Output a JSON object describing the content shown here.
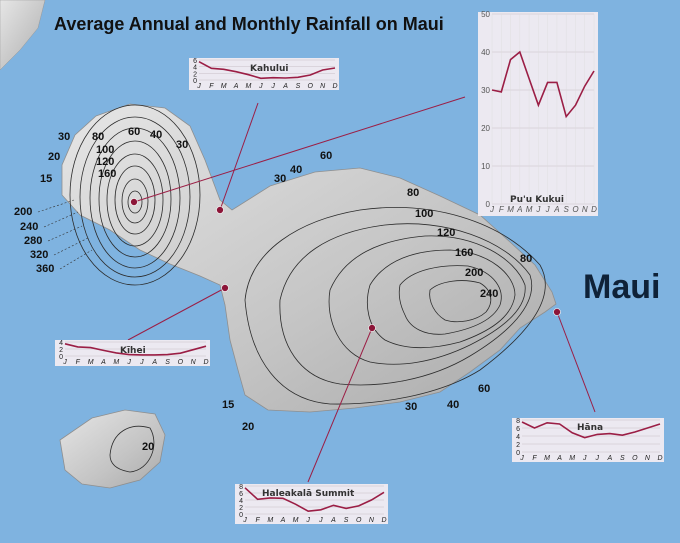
{
  "title": "Average Annual and Monthly Rainfall on Maui",
  "island_label": "Maui",
  "colors": {
    "ocean": "#7fb3e0",
    "land": "#cfcfcf",
    "contour": "#2b2b2b",
    "series": "#9b1e45",
    "chart_bg": "#f5eef2"
  },
  "months": [
    "J",
    "F",
    "M",
    "A",
    "M",
    "J",
    "J",
    "A",
    "S",
    "O",
    "N",
    "D"
  ],
  "contour_labels": {
    "west": [
      "30",
      "20",
      "15",
      "80",
      "100",
      "120",
      "160",
      "60",
      "40",
      "30",
      "200",
      "240",
      "280",
      "320",
      "360"
    ],
    "east": [
      "30",
      "40",
      "60",
      "80",
      "100",
      "120",
      "160",
      "200",
      "240",
      "80",
      "60",
      "40",
      "30",
      "20",
      "15"
    ],
    "kahoolawe": [
      "20"
    ]
  },
  "chart_data": [
    {
      "type": "line",
      "title": "Kahului",
      "x": [
        "J",
        "F",
        "M",
        "A",
        "M",
        "J",
        "J",
        "A",
        "S",
        "O",
        "N",
        "D"
      ],
      "series": [
        {
          "values": [
            5.5,
            3.5,
            3.2,
            2.5,
            1.6,
            0.5,
            0.7,
            0.6,
            0.8,
            1.5,
            3.0,
            3.6
          ]
        }
      ],
      "yticks": [
        "0",
        "2",
        "4",
        "6"
      ],
      "ylim": [
        0,
        6
      ]
    },
    {
      "type": "line",
      "title": "Pu'u Kukui",
      "x": [
        "J",
        "F",
        "M",
        "A",
        "M",
        "J",
        "J",
        "A",
        "S",
        "O",
        "N",
        "D"
      ],
      "series": [
        {
          "values": [
            30,
            29.5,
            38,
            40,
            33,
            26,
            32,
            32,
            23,
            26,
            31,
            35
          ]
        }
      ],
      "yticks": [
        "0",
        "10",
        "20",
        "30",
        "40",
        "50"
      ],
      "ylim": [
        0,
        50
      ]
    },
    {
      "type": "line",
      "title": "Kīhei",
      "x": [
        "J",
        "F",
        "M",
        "A",
        "M",
        "J",
        "J",
        "A",
        "S",
        "O",
        "N",
        "D"
      ],
      "series": [
        {
          "values": [
            3.5,
            2.6,
            2.4,
            1.6,
            0.9,
            0.4,
            0.3,
            0.3,
            0.4,
            0.8,
            1.8,
            2.8
          ]
        }
      ],
      "yticks": [
        "0",
        "2",
        "4"
      ],
      "ylim": [
        0,
        4
      ]
    },
    {
      "type": "line",
      "title": "Hāna",
      "x": [
        "J",
        "F",
        "M",
        "A",
        "M",
        "J",
        "J",
        "A",
        "S",
        "O",
        "N",
        "D"
      ],
      "series": [
        {
          "values": [
            7.5,
            6.0,
            7.3,
            7.0,
            4.8,
            3.6,
            4.4,
            4.6,
            4.2,
            5.0,
            6.0,
            7.0
          ]
        }
      ],
      "yticks": [
        "0",
        "2",
        "4",
        "6",
        "8"
      ],
      "ylim": [
        0,
        8
      ]
    },
    {
      "type": "line",
      "title": "Haleakalā Summit",
      "x": [
        "J",
        "F",
        "M",
        "A",
        "M",
        "J",
        "J",
        "A",
        "S",
        "O",
        "N",
        "D"
      ],
      "series": [
        {
          "values": [
            7.5,
            4.2,
            4.6,
            4.5,
            2.8,
            0.8,
            1.2,
            2.5,
            1.6,
            2.3,
            4.0,
            6.2
          ]
        }
      ],
      "yticks": [
        "0",
        "2",
        "4",
        "6",
        "8"
      ],
      "ylim": [
        0,
        8
      ]
    }
  ]
}
